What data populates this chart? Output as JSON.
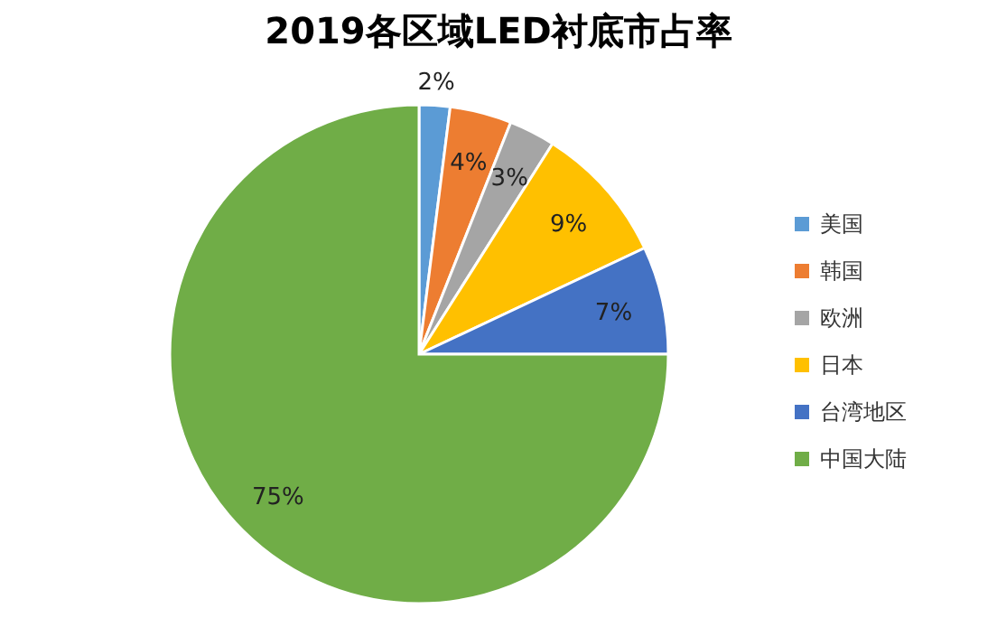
{
  "chart_data": {
    "type": "pie",
    "title": "2019各区域LED衬底市占率",
    "categories": [
      "美国",
      "韩国",
      "欧洲",
      "日本",
      "台湾地区",
      "中国大陆"
    ],
    "values": [
      2,
      4,
      3,
      9,
      7,
      75
    ],
    "colors": [
      "#5b9bd5",
      "#ed7d31",
      "#a5a5a5",
      "#ffc000",
      "#4472c4",
      "#70ad47"
    ],
    "value_labels": [
      "2%",
      "4%",
      "3%",
      "9%",
      "7%",
      "75%"
    ],
    "legend": "right"
  }
}
